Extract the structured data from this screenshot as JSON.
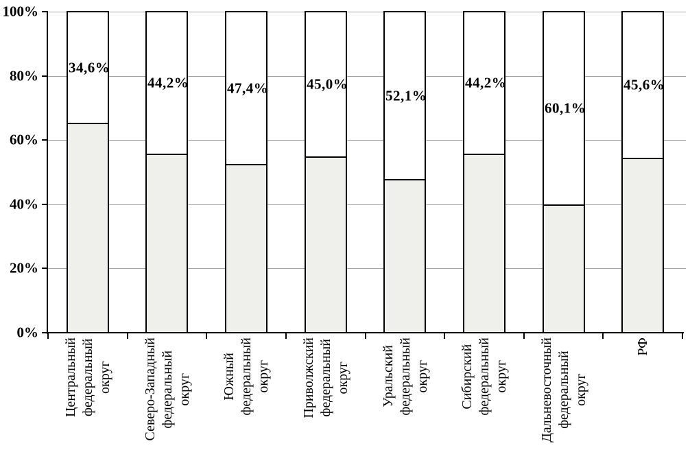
{
  "chart_data": {
    "type": "bar",
    "subtype": "stacked-100-percent",
    "title": "",
    "legend": "none",
    "grid": true,
    "categories": [
      "Центральный\nфедеральный\nокруг",
      "Северо-Западный\nфедеральный\nокруг",
      "Южный\nфедеральный\nокруг",
      "Приволжский\nфедеральный\nокруг",
      "Уральский\nфедеральный\nокруг",
      "Сибирский\nфедеральный\nокруг",
      "Дальневосточный\nфедеральный\nокруг",
      "РФ"
    ],
    "series": [
      {
        "name": "bottom-gray-segment",
        "color": "#efefec",
        "values": [
          65.4,
          55.8,
          52.6,
          55.0,
          47.9,
          55.8,
          39.9,
          54.4
        ]
      },
      {
        "name": "top-white-segment",
        "color": "#ffffff",
        "values": [
          34.6,
          44.2,
          47.4,
          45.0,
          52.1,
          44.2,
          60.1,
          45.6
        ]
      }
    ],
    "data_labels": [
      "34,6%",
      "44,2%",
      "47,4%",
      "45,0%",
      "52,1%",
      "44,2%",
      "60,1%",
      "45,6%"
    ],
    "y_axis": {
      "ticks": [
        "0%",
        "20%",
        "40%",
        "60%",
        "80%",
        "100%"
      ],
      "tick_values": [
        0,
        20,
        40,
        60,
        80,
        100
      ],
      "min": 0,
      "max": 100
    },
    "colors": {
      "bar_border": "#000000",
      "gridline": "#a3a3a3",
      "axis": "#000000",
      "text": "#000000",
      "background": "#ffffff"
    }
  }
}
